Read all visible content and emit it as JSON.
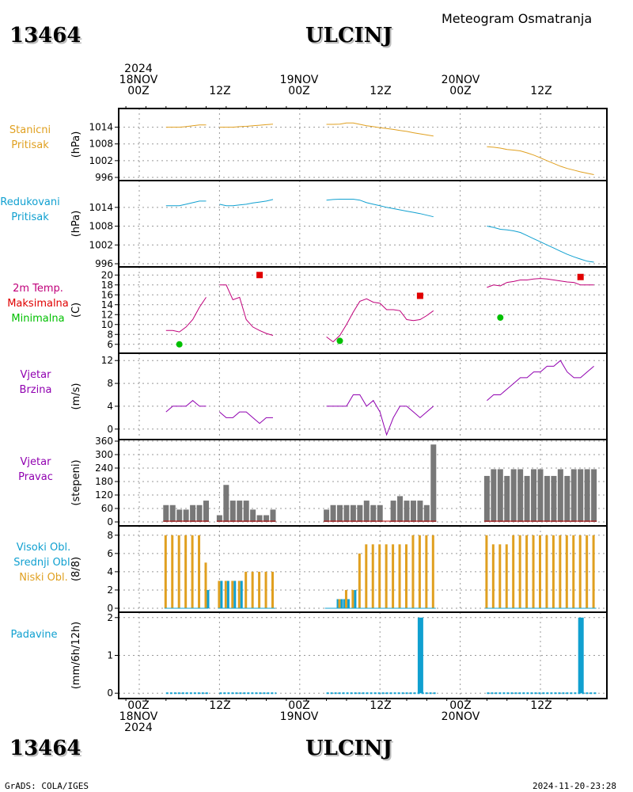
{
  "header": {
    "station_id": "13464",
    "station_name": "ULCINJ",
    "subtitle": "Meteogram Osmatranja",
    "credit": "GrADS: COLA/IGES",
    "timestamp": "2024-11-20-23:28"
  },
  "time_axis": {
    "labels": [
      {
        "hour": 0,
        "lines": [
          "2024",
          "18NOV",
          "00Z"
        ]
      },
      {
        "hour": 12,
        "lines": [
          "12Z"
        ]
      },
      {
        "hour": 24,
        "lines": [
          "19NOV",
          "00Z"
        ]
      },
      {
        "hour": 36,
        "lines": [
          "12Z"
        ]
      },
      {
        "hour": 48,
        "lines": [
          "20NOV",
          "00Z"
        ]
      },
      {
        "hour": 60,
        "lines": [
          "12Z"
        ]
      }
    ],
    "bottom_labels": [
      {
        "hour": 0,
        "lines": [
          "00Z",
          "18NOV",
          "2024"
        ]
      },
      {
        "hour": 12,
        "lines": [
          "12Z"
        ]
      },
      {
        "hour": 24,
        "lines": [
          "00Z",
          "19NOV"
        ]
      },
      {
        "hour": 36,
        "lines": [
          "12Z"
        ]
      },
      {
        "hour": 48,
        "lines": [
          "00Z",
          "20NOV"
        ]
      },
      {
        "hour": 60,
        "lines": [
          "12Z"
        ]
      }
    ]
  },
  "panels": {
    "station_pressure": {
      "labels": [
        "Stanicni",
        "Pritisak"
      ],
      "colors": [
        "#e0a020",
        "#e0a020"
      ],
      "unit": "(hPa)"
    },
    "reduced_pressure": {
      "labels": [
        "Redukovani",
        "Pritisak"
      ],
      "colors": [
        "#10a0d0",
        "#10a0d0"
      ],
      "unit": "(hPa)"
    },
    "temperature": {
      "labels": [
        "2m Temp.",
        "Maksimalna",
        "Minimalna"
      ],
      "colors": [
        "#c0007a",
        "#e00000",
        "#00c000"
      ],
      "unit": "(C)"
    },
    "wind_speed": {
      "labels": [
        "Vjetar",
        "Brzina"
      ],
      "colors": [
        "#9000b0",
        "#9000b0"
      ],
      "unit": "(m/s)"
    },
    "wind_dir": {
      "labels": [
        "Vjetar",
        "Pravac"
      ],
      "colors": [
        "#9000b0",
        "#9000b0"
      ],
      "unit": "(stepeni)"
    },
    "clouds": {
      "labels": [
        "Visoki Obl.",
        "Srednji Obl.",
        "Niski Obl."
      ],
      "colors": [
        "#10a0d0",
        "#10a0d0",
        "#e0a020"
      ],
      "unit": "(8/8)"
    },
    "precip": {
      "labels": [
        "Padavine"
      ],
      "colors": [
        "#10a0d0"
      ],
      "unit": "(mm/6h/12h)"
    }
  },
  "chart_data": [
    {
      "type": "line",
      "name": "station_pressure",
      "ylabel": "(hPa)",
      "ylim": [
        996,
        1017
      ],
      "yticks": [
        996,
        1002,
        1008,
        1014
      ],
      "color": "#e0a020",
      "segments": [
        {
          "x": [
            4,
            5,
            6,
            7,
            8,
            9,
            10
          ],
          "y": [
            1014.0,
            1014.0,
            1014.0,
            1014.2,
            1014.5,
            1014.8,
            1014.8
          ]
        },
        {
          "x": [
            12,
            13,
            14,
            15,
            16,
            17,
            18,
            19,
            20
          ],
          "y": [
            1014.0,
            1014.0,
            1014.0,
            1014.2,
            1014.3,
            1014.5,
            1014.7,
            1014.9,
            1015.1
          ]
        },
        {
          "x": [
            28,
            29,
            30,
            31,
            32,
            33,
            34,
            35,
            36,
            37,
            38,
            39,
            40,
            41,
            42,
            43,
            44
          ],
          "y": [
            1015.0,
            1015.0,
            1015.1,
            1015.5,
            1015.5,
            1015.0,
            1014.5,
            1014.2,
            1013.8,
            1013.5,
            1013.2,
            1012.8,
            1012.5,
            1012.0,
            1011.6,
            1011.2,
            1010.8
          ]
        },
        {
          "x": [
            52,
            53,
            54,
            55,
            56,
            57,
            58,
            59,
            60,
            61,
            62,
            63,
            64,
            65,
            66,
            67,
            68
          ],
          "y": [
            1007.0,
            1006.8,
            1006.5,
            1006.0,
            1005.8,
            1005.5,
            1004.8,
            1004.0,
            1003.0,
            1002.0,
            1001.0,
            1000.0,
            999.2,
            998.6,
            998.0,
            997.5,
            997.0
          ]
        }
      ]
    },
    {
      "type": "line",
      "name": "reduced_pressure",
      "ylabel": "(hPa)",
      "ylim": [
        996,
        1018
      ],
      "yticks": [
        996,
        1002,
        1008,
        1014
      ],
      "color": "#10a0d0",
      "segments": [
        {
          "x": [
            4,
            5,
            6,
            7,
            8,
            9,
            10
          ],
          "y": [
            1014.5,
            1014.5,
            1014.5,
            1015.0,
            1015.5,
            1016.0,
            1016.0
          ]
        },
        {
          "x": [
            12,
            13,
            14,
            15,
            16,
            17,
            18,
            19,
            20
          ],
          "y": [
            1015.0,
            1014.5,
            1014.5,
            1014.8,
            1015.0,
            1015.4,
            1015.7,
            1016.0,
            1016.5
          ]
        },
        {
          "x": [
            28,
            29,
            30,
            31,
            32,
            33,
            34,
            35,
            36,
            37,
            38,
            39,
            40,
            41,
            42,
            43,
            44
          ],
          "y": [
            1016.3,
            1016.5,
            1016.6,
            1016.6,
            1016.6,
            1016.3,
            1015.5,
            1015.0,
            1014.5,
            1014.0,
            1013.6,
            1013.2,
            1012.8,
            1012.4,
            1012.0,
            1011.5,
            1011.0
          ]
        },
        {
          "x": [
            52,
            53,
            54,
            55,
            56,
            57,
            58,
            59,
            60,
            61,
            62,
            63,
            64,
            65,
            66,
            67,
            68
          ],
          "y": [
            1008.0,
            1007.6,
            1007.0,
            1006.8,
            1006.5,
            1006.0,
            1005.0,
            1004.0,
            1003.0,
            1002.0,
            1001.0,
            1000.0,
            999.0,
            998.2,
            997.5,
            996.8,
            996.5
          ]
        }
      ]
    },
    {
      "type": "line",
      "name": "temperature",
      "ylabel": "(C)",
      "ylim": [
        5,
        21
      ],
      "yticks": [
        6,
        8,
        10,
        12,
        14,
        16,
        18,
        20
      ],
      "color": "#c0007a",
      "segments": [
        {
          "x": [
            4,
            5,
            6,
            7,
            8,
            9,
            10
          ],
          "y": [
            8.8,
            8.8,
            8.5,
            9.5,
            11.0,
            13.5,
            15.5
          ]
        },
        {
          "x": [
            12,
            13,
            14,
            15,
            16,
            17,
            18,
            19,
            20
          ],
          "y": [
            18.0,
            18.0,
            15.0,
            15.5,
            11.0,
            9.5,
            8.8,
            8.2,
            7.8
          ]
        },
        {
          "x": [
            28,
            29,
            30,
            31,
            32,
            33,
            34,
            35,
            36,
            37,
            38,
            39,
            40,
            41,
            42,
            43,
            44
          ],
          "y": [
            7.5,
            6.5,
            7.8,
            10.0,
            12.5,
            14.7,
            15.2,
            14.5,
            14.3,
            13.0,
            13.0,
            12.8,
            11.0,
            10.8,
            11.0,
            11.8,
            12.8
          ]
        },
        {
          "x": [
            52,
            53,
            54,
            55,
            56,
            57,
            58,
            59,
            60,
            61,
            62,
            63,
            64,
            65,
            66,
            67,
            68
          ],
          "y": [
            17.5,
            18.0,
            17.8,
            18.5,
            18.7,
            19.0,
            19.0,
            19.2,
            19.3,
            19.2,
            19.0,
            18.8,
            18.6,
            18.5,
            18.0,
            18.0,
            18.0
          ]
        }
      ],
      "max_markers": {
        "color": "#e00000",
        "x": [
          18,
          42,
          66
        ],
        "y": [
          20.0,
          15.8,
          19.6
        ]
      },
      "min_markers": {
        "color": "#00c000",
        "x": [
          6,
          30,
          54
        ],
        "y": [
          6.0,
          6.7,
          11.4
        ]
      }
    },
    {
      "type": "line",
      "name": "wind_speed",
      "ylabel": "(m/s)",
      "ylim": [
        -1,
        13
      ],
      "yticks": [
        0,
        4,
        8,
        12
      ],
      "color": "#9000b0",
      "segments": [
        {
          "x": [
            4,
            5,
            6,
            7,
            8,
            9,
            10
          ],
          "y": [
            3,
            4,
            4,
            4,
            5,
            4,
            4
          ]
        },
        {
          "x": [
            12,
            13,
            14,
            15,
            16,
            17,
            18,
            19,
            20
          ],
          "y": [
            3,
            2,
            2,
            3,
            3,
            2,
            1,
            2,
            2
          ]
        },
        {
          "x": [
            28,
            29,
            30,
            31,
            32,
            33,
            34,
            35,
            36,
            37,
            38,
            39,
            40,
            41,
            42,
            43,
            44
          ],
          "y": [
            4,
            4,
            4,
            4,
            6,
            6,
            4,
            5,
            3,
            -1,
            2,
            4,
            4,
            3,
            2,
            3,
            4
          ]
        },
        {
          "x": [
            52,
            53,
            54,
            55,
            56,
            57,
            58,
            59,
            60,
            61,
            62,
            63,
            64,
            65,
            66,
            67,
            68
          ],
          "y": [
            5,
            6,
            6,
            7,
            8,
            9,
            9,
            10,
            10,
            11,
            11,
            12,
            10,
            9,
            9,
            10,
            11
          ]
        }
      ]
    },
    {
      "type": "bar",
      "name": "wind_direction",
      "ylabel": "(stepeni)",
      "ylim": [
        0,
        360
      ],
      "yticks": [
        0,
        60,
        120,
        180,
        240,
        300,
        360
      ],
      "color": "#787878",
      "baseline_color": "#c00000",
      "x": [
        4,
        5,
        6,
        7,
        8,
        9,
        10,
        12,
        13,
        14,
        15,
        16,
        17,
        18,
        19,
        20,
        28,
        29,
        30,
        31,
        32,
        33,
        34,
        35,
        36,
        37,
        38,
        39,
        40,
        41,
        42,
        43,
        44,
        52,
        53,
        54,
        55,
        56,
        57,
        58,
        59,
        60,
        61,
        62,
        63,
        64,
        65,
        66,
        67,
        68
      ],
      "values": [
        75,
        75,
        55,
        55,
        75,
        75,
        95,
        30,
        165,
        95,
        95,
        95,
        55,
        30,
        30,
        55,
        55,
        75,
        75,
        75,
        75,
        75,
        95,
        75,
        75,
        0,
        95,
        115,
        95,
        95,
        95,
        75,
        345,
        205,
        235,
        235,
        205,
        235,
        235,
        205,
        235,
        235,
        205,
        205,
        235,
        205,
        235,
        235,
        235,
        235
      ]
    },
    {
      "type": "bar",
      "name": "clouds",
      "ylabel": "(8/8)",
      "ylim": [
        0,
        8.5
      ],
      "yticks": [
        0,
        2,
        4,
        6,
        8
      ],
      "x": [
        4,
        5,
        6,
        7,
        8,
        9,
        10,
        12,
        13,
        14,
        15,
        16,
        17,
        18,
        19,
        20,
        28,
        29,
        30,
        31,
        32,
        33,
        34,
        35,
        36,
        37,
        38,
        39,
        40,
        41,
        42,
        43,
        44,
        52,
        53,
        54,
        55,
        56,
        57,
        58,
        59,
        60,
        61,
        62,
        63,
        64,
        65,
        66,
        67,
        68
      ],
      "series": [
        {
          "name": "Niski Obl.",
          "color": "#e0a020",
          "values": [
            8,
            8,
            8,
            8,
            8,
            8,
            5,
            3,
            3,
            3,
            3,
            4,
            4,
            4,
            4,
            4,
            0,
            0,
            1,
            2,
            2,
            6,
            7,
            7,
            7,
            7,
            7,
            7,
            7,
            8,
            8,
            8,
            8,
            8,
            7,
            7,
            7,
            8,
            8,
            8,
            8,
            8,
            8,
            8,
            8,
            8,
            8,
            8,
            8,
            8
          ]
        },
        {
          "name": "Srednji Obl.",
          "color": "#10a0d0",
          "values": [
            0,
            0,
            0,
            0,
            0,
            0,
            2,
            3,
            3,
            3,
            3,
            0,
            0,
            0,
            0,
            0,
            0,
            0,
            1,
            1,
            2,
            0,
            0,
            0,
            0,
            0,
            0,
            0,
            0,
            0,
            0,
            0,
            0,
            0,
            0,
            0,
            0,
            0,
            0,
            0,
            0,
            0,
            0,
            0,
            0,
            0,
            0,
            0,
            0,
            0
          ]
        },
        {
          "name": "Visoki Obl.",
          "color": "#10a0d0",
          "values": [
            0,
            0,
            0,
            0,
            0,
            0,
            0,
            0,
            0,
            0,
            0,
            0,
            0,
            0,
            0,
            0,
            0,
            0,
            1,
            1,
            0,
            0,
            0,
            0,
            0,
            0,
            0,
            0,
            0,
            0,
            0,
            0,
            0,
            0,
            0,
            0,
            0,
            0,
            0,
            0,
            0,
            0,
            0,
            0,
            0,
            0,
            0,
            0,
            0,
            0
          ]
        }
      ]
    },
    {
      "type": "bar",
      "name": "precipitation",
      "ylabel": "(mm/6h/12h)",
      "ylim": [
        -0.1,
        2.1
      ],
      "yticks": [
        0,
        1,
        2
      ],
      "color": "#10a0d0",
      "x": [
        42,
        66
      ],
      "values": [
        2,
        2
      ],
      "zero_segments": [
        [
          4,
          10.5
        ],
        [
          12,
          20.5
        ],
        [
          28,
          44.5
        ],
        [
          52,
          68.5
        ]
      ]
    }
  ]
}
